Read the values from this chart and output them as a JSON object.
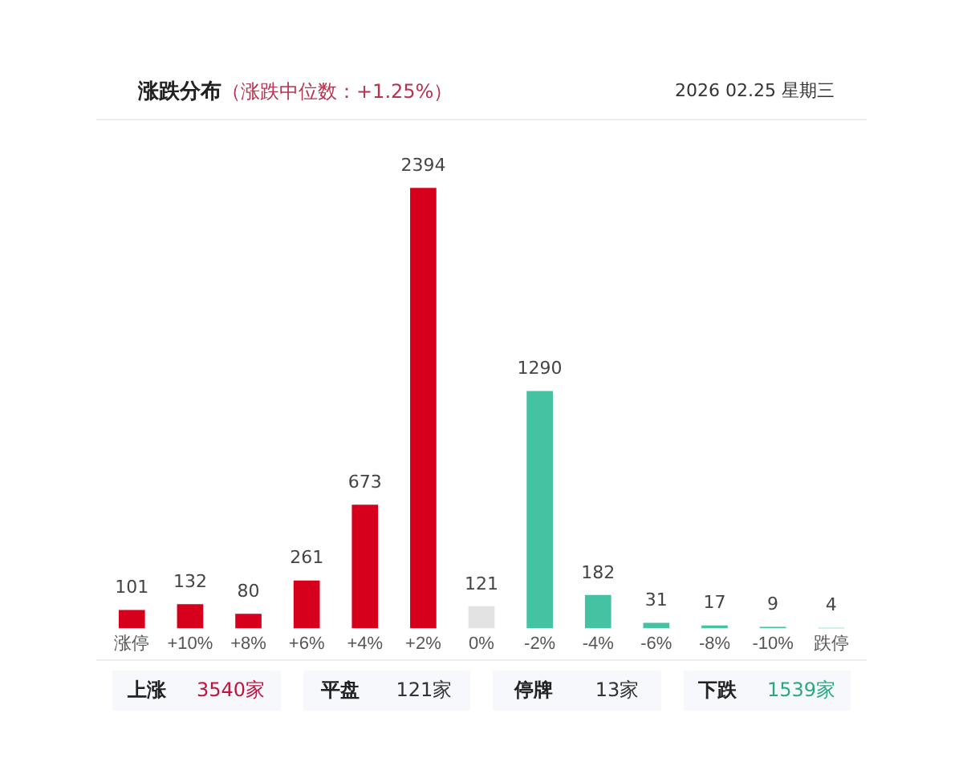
{
  "chart_data": {
    "type": "bar",
    "title": "涨跌分布",
    "subtitle": "（涨跌中位数：+1.25%）",
    "categories": [
      "涨停",
      "+10%",
      "+8%",
      "+6%",
      "+4%",
      "+2%",
      "0%",
      "-2%",
      "-4%",
      "-6%",
      "-8%",
      "-10%",
      "跌停"
    ],
    "values": [
      101,
      132,
      80,
      261,
      673,
      2394,
      121,
      1290,
      182,
      31,
      17,
      9,
      4
    ],
    "colors": [
      "#d7001c",
      "#d7001c",
      "#d7001c",
      "#d7001c",
      "#d7001c",
      "#d7001c",
      "#e3e3e3",
      "#44c2a2",
      "#44c2a2",
      "#44c2a2",
      "#44c2a2",
      "#44c2a2",
      "#44c2a2"
    ],
    "data_labels": true,
    "grid": false,
    "legend": false,
    "annotations": [
      "2026 02.25 星期三",
      "上涨",
      "3540家",
      "平盘",
      "121家",
      "停牌",
      "13家",
      "下跌",
      "1539家"
    ]
  }
}
